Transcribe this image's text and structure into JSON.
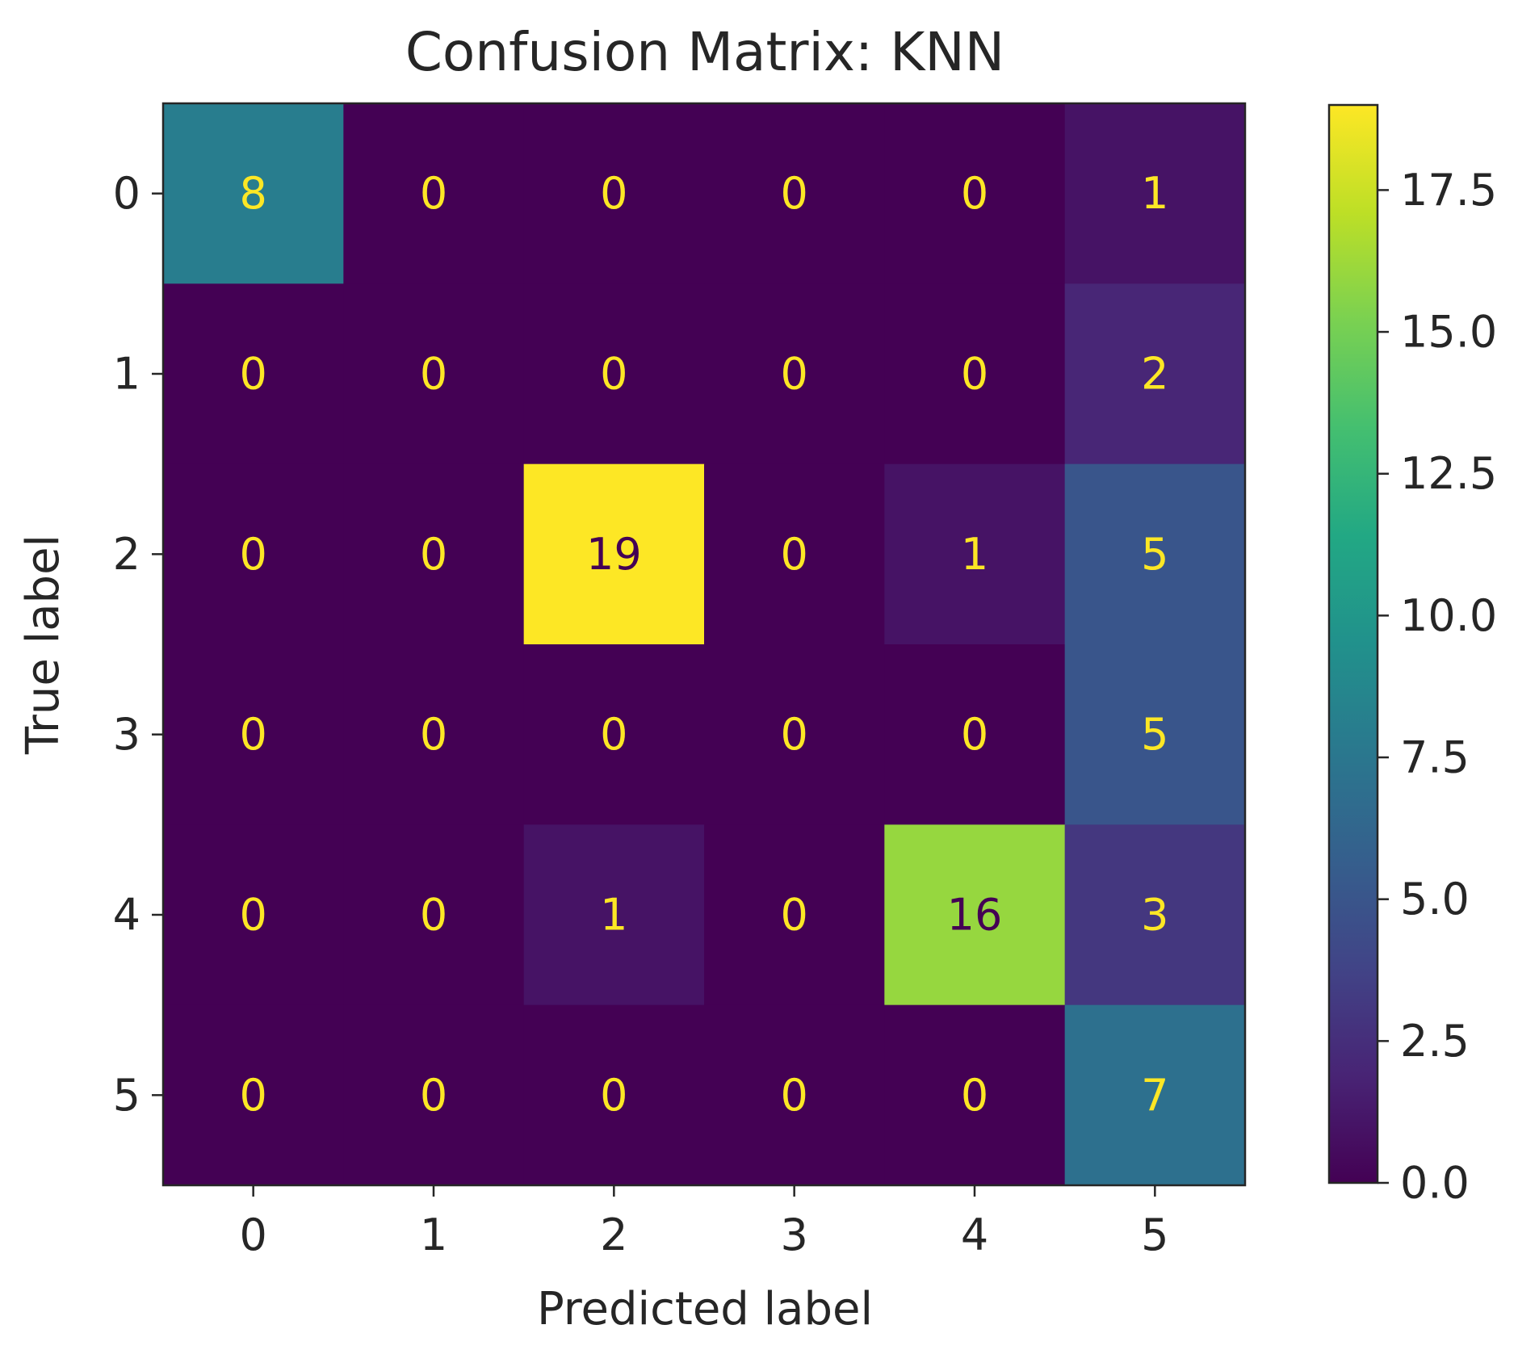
{
  "chart_data": {
    "type": "heatmap",
    "title": "Confusion Matrix: KNN",
    "xlabel": "Predicted label",
    "ylabel": "True label",
    "x_categories": [
      "0",
      "1",
      "2",
      "3",
      "4",
      "5"
    ],
    "y_categories": [
      "0",
      "1",
      "2",
      "3",
      "4",
      "5"
    ],
    "values": [
      [
        8,
        0,
        0,
        0,
        0,
        1
      ],
      [
        0,
        0,
        0,
        0,
        0,
        2
      ],
      [
        0,
        0,
        19,
        0,
        1,
        5
      ],
      [
        0,
        0,
        0,
        0,
        0,
        5
      ],
      [
        0,
        0,
        1,
        0,
        16,
        3
      ],
      [
        0,
        0,
        0,
        0,
        0,
        7
      ]
    ],
    "colormap": "viridis",
    "color_range": [
      0,
      19
    ],
    "colorbar_ticks": [
      "0.0",
      "2.5",
      "5.0",
      "7.5",
      "10.0",
      "12.5",
      "15.0",
      "17.5"
    ],
    "colorbar_tick_values": [
      0,
      2.5,
      5,
      7.5,
      10,
      12.5,
      15,
      17.5
    ],
    "cell_text_colors": {
      "on_dark": "#fde725",
      "on_light": "#440154"
    },
    "grid": false
  }
}
